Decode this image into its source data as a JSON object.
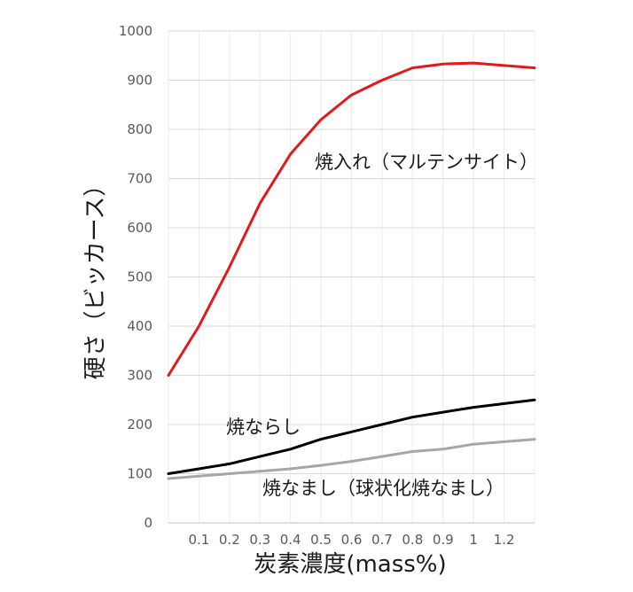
{
  "chart_data": {
    "type": "line",
    "xlabel": "炭素濃度(mass%)",
    "ylabel": "硬さ（ビッカース）",
    "xlim": [
      0,
      1.2
    ],
    "ylim": [
      0,
      1000
    ],
    "x_tick_labels": [
      "0.1",
      "0.2",
      "0.3",
      "0.4",
      "0.5",
      "0.6",
      "0.7",
      "0.8",
      "0.9",
      "1",
      "1.2"
    ],
    "y_tick_labels": [
      "0",
      "100",
      "200",
      "300",
      "400",
      "500",
      "600",
      "700",
      "800",
      "900",
      "1000"
    ],
    "y_ticks": [
      0,
      100,
      200,
      300,
      400,
      500,
      600,
      700,
      800,
      900,
      1000
    ],
    "categories": [
      0,
      0.1,
      0.2,
      0.3,
      0.4,
      0.5,
      0.6,
      0.7,
      0.8,
      0.9,
      1.0,
      1.1
    ],
    "grid": true,
    "series": [
      {
        "name": "焼入れ（マルテンサイト）",
        "color": "#e31a1c",
        "values": [
          300,
          400,
          520,
          650,
          750,
          820,
          870,
          900,
          925,
          933,
          935,
          925
        ]
      },
      {
        "name": "焼ならし",
        "color": "#000000",
        "values": [
          100,
          110,
          120,
          135,
          150,
          170,
          185,
          200,
          215,
          225,
          235,
          250
        ]
      },
      {
        "name": "焼なまし（球状化焼なまし）",
        "color": "#a6a6a6",
        "values": [
          90,
          95,
          100,
          105,
          110,
          117,
          125,
          135,
          145,
          150,
          160,
          170
        ]
      }
    ]
  }
}
